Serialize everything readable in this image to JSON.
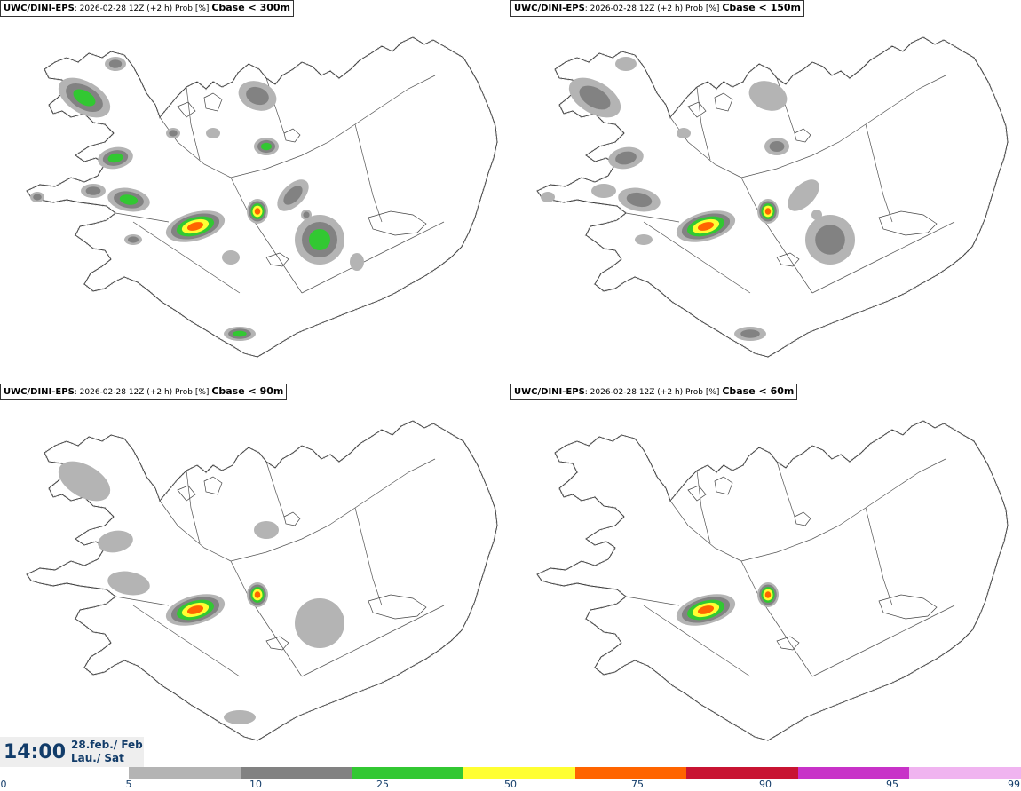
{
  "panels": [
    {
      "model": "UWC/DINI-EPS",
      "info": ": 2026-02-28 12Z (+2 h) Prob [%] ",
      "threshold": "Cbase < 300m",
      "level": 4
    },
    {
      "model": "UWC/DINI-EPS",
      "info": ": 2026-02-28 12Z (+2 h) Prob [%] ",
      "threshold": "Cbase < 150m",
      "level": 3
    },
    {
      "model": "UWC/DINI-EPS",
      "info": ": 2026-02-28 12Z (+2 h) Prob [%] ",
      "threshold": "Cbase < 90m",
      "level": 2
    },
    {
      "model": "UWC/DINI-EPS",
      "info": ": 2026-02-28 12Z (+2 h) Prob [%] ",
      "threshold": "Cbase < 60m",
      "level": 1
    }
  ],
  "valid_time": {
    "time": "14:00",
    "date": "28.feb./ Feb",
    "day": "Lau./ Sat"
  },
  "colorbar": {
    "ticks": [
      "0",
      "5",
      "10",
      "25",
      "50",
      "75",
      "90",
      "95",
      "99"
    ],
    "colors": [
      "#b4b4b4",
      "#828282",
      "#32c832",
      "#ffff32",
      "#ff6400",
      "#c81432",
      "#c832c8",
      "#f0b4f0"
    ]
  }
}
